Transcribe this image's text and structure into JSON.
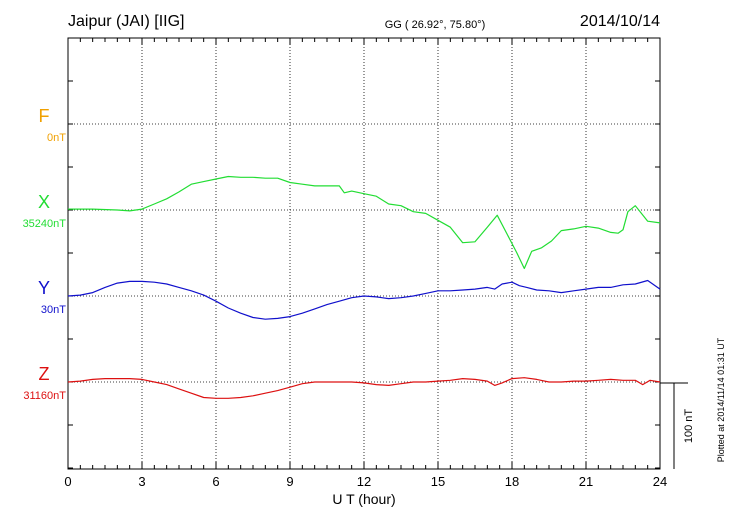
{
  "header": {
    "station": "Jaipur (JAI)  [IIG]",
    "coords": "GG ( 26.92°,  75.80°)",
    "date": "2014/10/14"
  },
  "footer": {
    "plotted": "Plotted at 2014/11/14 01:31  UT",
    "scale_label": "100 nT"
  },
  "colors": {
    "F": "#f0a000",
    "X": "#22dd33",
    "Y": "#1010cc",
    "Z": "#dd1010",
    "axis": "#000000",
    "grid": "#000000"
  },
  "chart_data": {
    "type": "line",
    "xlabel": "U T (hour)",
    "xlim": [
      0,
      24
    ],
    "xticks": [
      0,
      3,
      6,
      9,
      12,
      15,
      18,
      21,
      24
    ],
    "grid": true,
    "scale_bar_nT": 100,
    "series": [
      {
        "name": "F",
        "key": "F",
        "baseline_label": "0nT",
        "baseline": 0,
        "x": [],
        "y": []
      },
      {
        "name": "X",
        "key": "X",
        "baseline_label": "35240nT",
        "baseline": 35240,
        "x": [
          0,
          1,
          2,
          2.5,
          3,
          3.5,
          4,
          4.5,
          5,
          5.5,
          6,
          6.5,
          7,
          7.5,
          8,
          8.5,
          9,
          9.5,
          10,
          10.5,
          11,
          11.2,
          11.5,
          12,
          12.5,
          13,
          13.5,
          14,
          14.5,
          15,
          15.5,
          16,
          16.5,
          17,
          17.4,
          17.8,
          18.2,
          18.5,
          18.8,
          19.2,
          19.6,
          20,
          20.5,
          21,
          21.5,
          22,
          22.3,
          22.5,
          22.7,
          23,
          23.5,
          24
        ],
        "y": [
          35241,
          35241,
          35240,
          35239,
          35241,
          35247,
          35253,
          35261,
          35270,
          35273,
          35276,
          35279,
          35278,
          35278,
          35277,
          35277,
          35272,
          35270,
          35268,
          35268,
          35268,
          35260,
          35262,
          35259,
          35256,
          35247,
          35245,
          35238,
          35236,
          35228,
          35220,
          35202,
          35203,
          35220,
          35234,
          35212,
          35190,
          35172,
          35192,
          35196,
          35204,
          35216,
          35218,
          35221,
          35219,
          35214,
          35213,
          35217,
          35238,
          35245,
          35227,
          35225
        ]
      },
      {
        "name": "Y",
        "key": "Y",
        "baseline_label": "30nT",
        "baseline": 30,
        "x": [
          0,
          0.5,
          1,
          1.5,
          2,
          2.5,
          3,
          3.5,
          4,
          4.5,
          5,
          5.5,
          6,
          6.5,
          7,
          7.5,
          8,
          8.5,
          9,
          9.5,
          10,
          10.5,
          11,
          11.5,
          12,
          12.5,
          13,
          13.5,
          14,
          14.5,
          15,
          15.5,
          16,
          16.5,
          17,
          17.3,
          17.6,
          18,
          18.3,
          18.6,
          19,
          19.5,
          20,
          20.5,
          21,
          21.5,
          22,
          22.5,
          23,
          23.5,
          24
        ],
        "y": [
          30,
          31,
          34,
          40,
          45,
          47,
          47,
          46,
          44,
          40,
          36,
          31,
          24,
          16,
          10,
          5,
          3,
          4,
          6,
          10,
          15,
          20,
          24,
          28,
          30,
          29,
          27,
          28,
          30,
          33,
          36,
          36,
          37,
          38,
          40,
          38,
          44,
          46,
          42,
          40,
          37,
          36,
          34,
          36,
          38,
          40,
          40,
          43,
          44,
          48,
          38
        ]
      },
      {
        "name": "Z",
        "key": "Z",
        "baseline_label": "31160nT",
        "baseline": 31160,
        "x": [
          0,
          0.5,
          1,
          1.5,
          2,
          2.5,
          3,
          3.5,
          4,
          4.5,
          5,
          5.5,
          6,
          6.5,
          7,
          7.5,
          8,
          8.5,
          9,
          9.5,
          10,
          10.5,
          11,
          11.5,
          12,
          12.5,
          13,
          13.5,
          14,
          14.5,
          15,
          15.5,
          16,
          16.5,
          17,
          17.3,
          17.6,
          18,
          18.5,
          19,
          19.5,
          20,
          20.5,
          21,
          21.5,
          22,
          22.5,
          23,
          23.3,
          23.6,
          24
        ],
        "y": [
          31160,
          31161,
          31163,
          31164,
          31164,
          31164,
          31163,
          31160,
          31157,
          31152,
          31147,
          31142,
          31141,
          31141,
          31142,
          31144,
          31147,
          31150,
          31154,
          31158,
          31160,
          31160,
          31160,
          31160,
          31159,
          31157,
          31156,
          31158,
          31160,
          31160,
          31161,
          31162,
          31164,
          31163,
          31161,
          31156,
          31159,
          31164,
          31165,
          31163,
          31160,
          31160,
          31161,
          31161,
          31162,
          31163,
          31162,
          31162,
          31157,
          31162,
          31160
        ]
      }
    ]
  }
}
